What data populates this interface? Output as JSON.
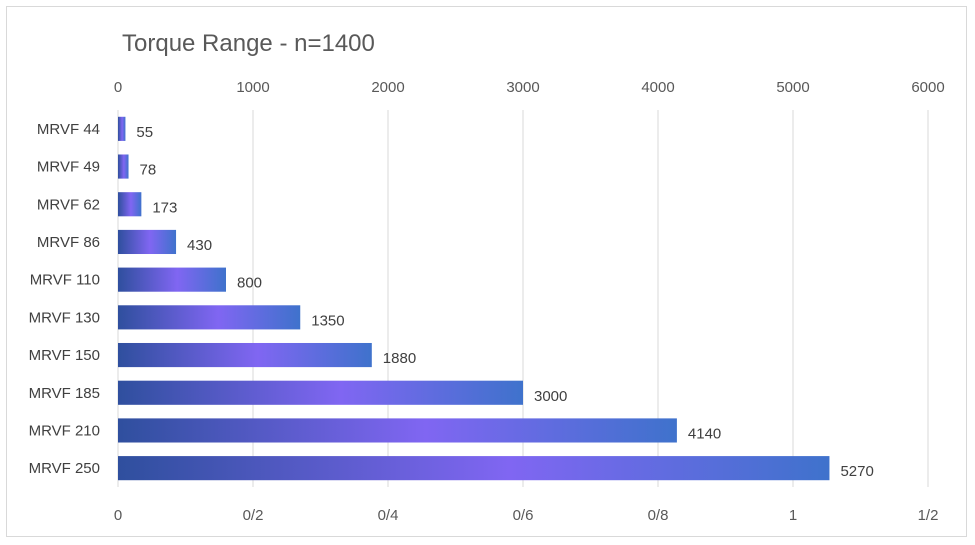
{
  "chart_data": {
    "type": "bar",
    "orientation": "horizontal",
    "title": "Torque Range - n=1400",
    "categories": [
      "MRVF 44",
      "MRVF 49",
      "MRVF 62",
      "MRVF 86",
      "MRVF 110",
      "MRVF 130",
      "MRVF 150",
      "MRVF 185",
      "MRVF 210",
      "MRVF 250"
    ],
    "values": [
      55,
      78,
      173,
      430,
      800,
      1350,
      1880,
      3000,
      4140,
      5270
    ],
    "data_labels": [
      "55",
      "78",
      "173",
      "430",
      "800",
      "1350",
      "1880",
      "3000",
      "4140",
      "5270"
    ],
    "top_axis": {
      "range": [
        0,
        6000
      ],
      "ticks": [
        "0",
        "1000",
        "2000",
        "3000",
        "4000",
        "5000",
        "6000"
      ]
    },
    "bottom_axis": {
      "range": [
        0,
        1.2
      ],
      "ticks": [
        "0",
        "0/2",
        "0/4",
        "0/6",
        "0/8",
        "1",
        "1/2"
      ]
    },
    "grid": true,
    "legend": "none",
    "colors": {
      "bar_dark": "#2f4f9e",
      "bar_light": "#8066f2",
      "grid": "#d9d9d9",
      "text": "#595959"
    }
  }
}
